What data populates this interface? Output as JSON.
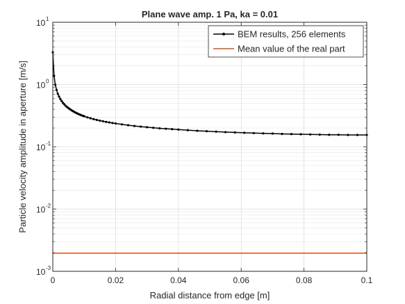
{
  "chart_data": {
    "type": "line",
    "title": "Plane wave amp. 1 Pa, ka = 0.01",
    "xlabel": "Radial distance from edge   [m]",
    "ylabel": "Particle velocity amplitude in aperture   [m/s]",
    "xlim": [
      0,
      0.1
    ],
    "ylim": [
      0.001,
      10
    ],
    "yscale": "log",
    "grid": true,
    "legend_position": "top-right",
    "x_ticks": [
      "0",
      "0.02",
      "0.04",
      "0.06",
      "0.08",
      "0.1"
    ],
    "y_ticks": [
      {
        "base": "10",
        "exp": "-3",
        "value": 0.001
      },
      {
        "base": "10",
        "exp": "-2",
        "value": 0.01
      },
      {
        "base": "10",
        "exp": "-1",
        "value": 0.1
      },
      {
        "base": "10",
        "exp": "0",
        "value": 1
      },
      {
        "base": "10",
        "exp": "1",
        "value": 10
      }
    ],
    "series": [
      {
        "name": "BEM results, 256 elements",
        "color": "#000000",
        "marker": "dot",
        "x": [
          0,
          0.0004,
          0.0008,
          0.0012,
          0.0016,
          0.002,
          0.0024,
          0.0028,
          0.0032,
          0.0036,
          0.004,
          0.0044,
          0.0048,
          0.0052,
          0.0056,
          0.006,
          0.0064,
          0.0068,
          0.0072,
          0.0076,
          0.008,
          0.0084,
          0.0088,
          0.0092,
          0.0096,
          0.01,
          0.011,
          0.012,
          0.013,
          0.014,
          0.015,
          0.016,
          0.017,
          0.018,
          0.019,
          0.02,
          0.022,
          0.024,
          0.026,
          0.028,
          0.03,
          0.032,
          0.034,
          0.036,
          0.038,
          0.04,
          0.043,
          0.046,
          0.049,
          0.052,
          0.055,
          0.058,
          0.061,
          0.064,
          0.067,
          0.07,
          0.073,
          0.076,
          0.079,
          0.082,
          0.085,
          0.088,
          0.091,
          0.094,
          0.097,
          0.1
        ],
        "y": [
          3.3,
          1.38,
          0.99,
          0.82,
          0.71,
          0.64,
          0.585,
          0.545,
          0.51,
          0.485,
          0.46,
          0.44,
          0.425,
          0.41,
          0.397,
          0.385,
          0.374,
          0.364,
          0.355,
          0.347,
          0.339,
          0.332,
          0.326,
          0.32,
          0.314,
          0.309,
          0.297,
          0.287,
          0.278,
          0.27,
          0.263,
          0.257,
          0.251,
          0.246,
          0.241,
          0.237,
          0.229,
          0.222,
          0.216,
          0.211,
          0.206,
          0.202,
          0.198,
          0.195,
          0.192,
          0.189,
          0.185,
          0.181,
          0.178,
          0.175,
          0.172,
          0.17,
          0.168,
          0.166,
          0.164,
          0.163,
          0.161,
          0.16,
          0.159,
          0.158,
          0.157,
          0.156,
          0.156,
          0.155,
          0.155,
          0.155
        ]
      },
      {
        "name": "Mean value of the real part",
        "color": "#d95319",
        "marker": "none",
        "x": [
          0,
          0.1
        ],
        "y": [
          0.00195,
          0.00195
        ]
      }
    ]
  }
}
